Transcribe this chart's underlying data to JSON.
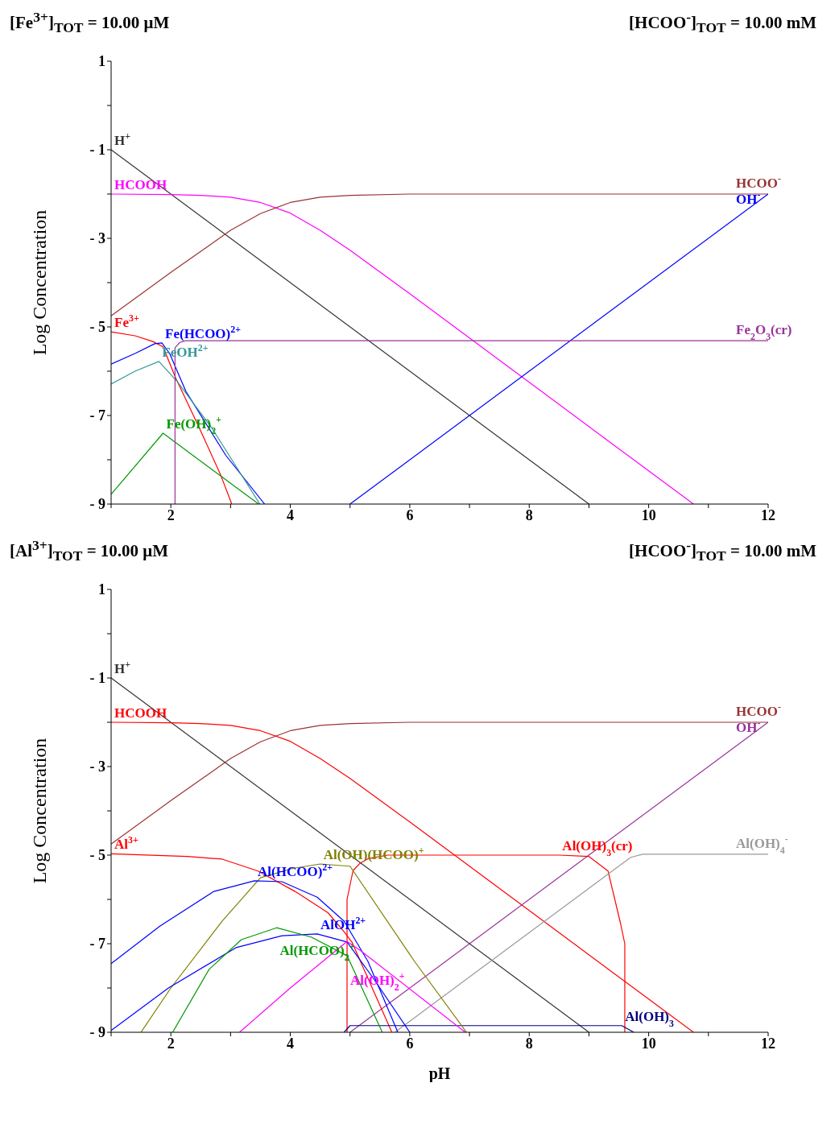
{
  "chart_data": [
    {
      "type": "line",
      "title": "[Fe$^{3+}$]$_{TOT}$ =  10.00 μM",
      "subtitle": "[HCOO$^{-}$]$_{TOT}$ =  10.00 mM",
      "ylabel": "Log Concentration",
      "xlim": [
        1,
        12
      ],
      "xticks": [
        {
          "value": 1,
          "label": null
        },
        2,
        {
          "value": 3,
          "label": null
        },
        4,
        {
          "value": 5,
          "label": null
        },
        6,
        {
          "value": 7,
          "label": null
        },
        8,
        {
          "value": 9,
          "label": null
        },
        10,
        {
          "value": 11,
          "label": null
        },
        12
      ],
      "ylim": [
        -9,
        1
      ],
      "yticks": [
        {
          "value": -9,
          "label": "- 9"
        },
        {
          "value": -8,
          "label": null
        },
        {
          "value": -7,
          "label": "- 7"
        },
        {
          "value": -6,
          "label": null
        },
        {
          "value": -5,
          "label": "- 5"
        },
        {
          "value": -4,
          "label": null
        },
        {
          "value": -3,
          "label": "- 3"
        },
        {
          "value": -2,
          "label": null
        },
        {
          "value": -1,
          "label": "- 1"
        },
        {
          "value": 0,
          "label": null
        },
        1
      ],
      "marker": "none",
      "line_style": "solid",
      "series": [
        {
          "name": "H$^{+}$",
          "color": "#333333",
          "x": [
            1,
            9
          ],
          "values": [
            -1,
            -9
          ]
        },
        {
          "name": "HCOOH",
          "color": "#ff00ff",
          "x": [
            1,
            2,
            2.5,
            3,
            3.5,
            4,
            4.5,
            5,
            6,
            8,
            10,
            10.75
          ],
          "values": [
            -2.0,
            -2.01,
            -2.03,
            -2.07,
            -2.19,
            -2.43,
            -2.82,
            -3.27,
            -4.25,
            -6.25,
            -8.25,
            -9.0
          ]
        },
        {
          "name": "HCOO$^{-}$",
          "color": "#993333",
          "x": [
            1,
            2,
            3,
            3.5,
            4,
            4.5,
            5,
            6,
            12
          ],
          "values": [
            -4.75,
            -3.77,
            -2.82,
            -2.44,
            -2.19,
            -2.07,
            -2.03,
            -2.0,
            -2.0
          ]
        },
        {
          "name": "OH$^{-}$",
          "color": "#0000ff",
          "x": [
            5,
            12
          ],
          "values": [
            -9,
            -2
          ]
        },
        {
          "name": "Fe$^{3+}$",
          "color": "#ff0000",
          "x": [
            1,
            1.4,
            1.7,
            1.87,
            2.08,
            2.48,
            2.83,
            3.02
          ],
          "values": [
            -5.11,
            -5.2,
            -5.33,
            -5.45,
            -6.15,
            -7.29,
            -8.33,
            -9.0
          ]
        },
        {
          "name": "Fe(HCOO)$^{2+}$",
          "color": "#0000ff",
          "x": [
            1,
            1.4,
            1.73,
            1.85,
            1.98,
            2.25,
            2.92,
            3.57
          ],
          "values": [
            -5.84,
            -5.6,
            -5.38,
            -5.36,
            -5.6,
            -6.45,
            -7.9,
            -9.0
          ]
        },
        {
          "name": "FeOH$^{2+}$",
          "color": "#339999",
          "x": [
            1,
            1.4,
            1.8,
            2.11,
            2.69,
            3.49
          ],
          "values": [
            -6.29,
            -6.0,
            -5.78,
            -6.24,
            -7.29,
            -9.0
          ]
        },
        {
          "name": "Fe(OH)$_{2}$$^{+}$",
          "color": "#009900",
          "x": [
            1,
            1.87,
            3.47
          ],
          "values": [
            -8.78,
            -7.4,
            -9.0
          ]
        },
        {
          "name": "Fe$_{2}$O$_{3}$(cr)",
          "color": "#993399",
          "x": [
            2.07,
            2.07,
            2.15,
            2.25,
            12
          ],
          "values": [
            -9,
            -5.47,
            -5.35,
            -5.31,
            -5.31
          ]
        }
      ]
    },
    {
      "type": "line",
      "title": "[Al$^{3+}$]$_{TOT}$ =  10.00 μM",
      "subtitle": "[HCOO$^{-}$]$_{TOT}$ =  10.00 mM",
      "xlabel": "pH",
      "ylabel": "Log Concentration",
      "xlim": [
        1,
        12
      ],
      "xticks": [
        {
          "value": 1,
          "label": null
        },
        2,
        {
          "value": 3,
          "label": null
        },
        4,
        {
          "value": 5,
          "label": null
        },
        6,
        {
          "value": 7,
          "label": null
        },
        8,
        {
          "value": 9,
          "label": null
        },
        10,
        {
          "value": 11,
          "label": null
        },
        12
      ],
      "ylim": [
        -9,
        1
      ],
      "yticks": [
        {
          "value": -9,
          "label": "- 9"
        },
        {
          "value": -8,
          "label": null
        },
        {
          "value": -7,
          "label": "- 7"
        },
        {
          "value": -6,
          "label": null
        },
        {
          "value": -5,
          "label": "- 5"
        },
        {
          "value": -4,
          "label": null
        },
        {
          "value": -3,
          "label": "- 3"
        },
        {
          "value": -2,
          "label": null
        },
        {
          "value": -1,
          "label": "- 1"
        },
        {
          "value": 0,
          "label": null
        },
        1
      ],
      "marker": "none",
      "line_style": "solid",
      "series": [
        {
          "name": "H$^{+}$",
          "color": "#333333",
          "x": [
            1,
            9
          ],
          "values": [
            -1,
            -9
          ]
        },
        {
          "name": "HCOOH",
          "color": "#ff0000",
          "x": [
            1,
            2,
            2.5,
            3,
            3.5,
            4,
            4.5,
            5,
            6,
            8,
            10,
            10.75
          ],
          "values": [
            -2.0,
            -2.01,
            -2.03,
            -2.07,
            -2.19,
            -2.43,
            -2.82,
            -3.27,
            -4.25,
            -6.25,
            -8.25,
            -9.0
          ]
        },
        {
          "name": "HCOO$^{-}$",
          "color": "#993333",
          "x": [
            1,
            2,
            3,
            3.5,
            4,
            4.5,
            5,
            6,
            12
          ],
          "values": [
            -4.75,
            -3.77,
            -2.82,
            -2.44,
            -2.19,
            -2.07,
            -2.03,
            -2.0,
            -2.0
          ]
        },
        {
          "name": "OH$^{-}$",
          "color": "#993399",
          "x": [
            5,
            12
          ],
          "values": [
            -9,
            -2
          ]
        },
        {
          "name": "Al$^{3+}$",
          "color": "#ff0000",
          "x": [
            1,
            2.27,
            2.86,
            3.46,
            4.08,
            4.63,
            4.9,
            5.03,
            5.7
          ],
          "values": [
            -4.97,
            -5.03,
            -5.09,
            -5.36,
            -5.82,
            -6.3,
            -6.73,
            -6.96,
            -9.0
          ]
        },
        {
          "name": "Al(OH)$_{3}$(cr)",
          "color": "#ff0000",
          "x": [
            4.95,
            4.95,
            5.05,
            5.17,
            5.3,
            5.63,
            8.5,
            9.0,
            9.32,
            9.53,
            9.6,
            9.6
          ],
          "values": [
            -9,
            -6.0,
            -5.35,
            -5.18,
            -5.08,
            -5.0,
            -5.0,
            -5.03,
            -5.36,
            -6.55,
            -7.0,
            -9.0
          ]
        },
        {
          "name": "Al(OH)$_{4}$$^{-}$",
          "color": "#999999",
          "x": [
            5.75,
            9.7,
            9.9,
            12
          ],
          "values": [
            -9,
            -5.05,
            -4.98,
            -4.98
          ]
        },
        {
          "name": "Al(OH)$_{3}$",
          "color": "#000080",
          "x": [
            4.9,
            5.0,
            9.55,
            9.75
          ],
          "values": [
            -9,
            -8.85,
            -8.85,
            -9
          ]
        },
        {
          "name": "Al(OH)(HCOO)$^{+}$",
          "color": "#808000",
          "x": [
            1.5,
            2.0,
            2.86,
            3.5,
            4.04,
            4.5,
            5.0,
            6.08,
            6.95
          ],
          "values": [
            -9,
            -8.0,
            -6.49,
            -5.51,
            -5.3,
            -5.2,
            -5.25,
            -7.4,
            -9
          ]
        },
        {
          "name": "Al(HCOO)$^{2+}$",
          "color": "#0000ff",
          "x": [
            1,
            1.82,
            2.72,
            3.4,
            3.86,
            4.45,
            4.9,
            5.3,
            5.8
          ],
          "values": [
            -7.45,
            -6.6,
            -5.82,
            -5.58,
            -5.6,
            -5.95,
            -6.49,
            -7.4,
            -9.0
          ]
        },
        {
          "name": "AlOH$^{2+}$",
          "color": "#0000ff",
          "x": [
            1,
            1.96,
            3.09,
            3.86,
            4.45,
            4.95,
            5.4,
            6.0
          ],
          "values": [
            -8.96,
            -8.0,
            -7.09,
            -6.82,
            -6.78,
            -6.96,
            -7.8,
            -9.0
          ]
        },
        {
          "name": "Al(HCOO)$_{2}$$^{+}$",
          "color": "#009900",
          "x": [
            2.03,
            2.64,
            3.18,
            3.77,
            4.35,
            4.95,
            5.54
          ],
          "values": [
            -9,
            -7.58,
            -6.91,
            -6.64,
            -6.85,
            -7.27,
            -9
          ]
        },
        {
          "name": "Al(OH)$_{2}$$^{+}$",
          "color": "#ff00ff",
          "x": [
            3.15,
            4.0,
            4.95,
            5.17,
            6.93
          ],
          "values": [
            -9,
            -8.0,
            -6.95,
            -7.15,
            -9
          ]
        }
      ]
    }
  ]
}
